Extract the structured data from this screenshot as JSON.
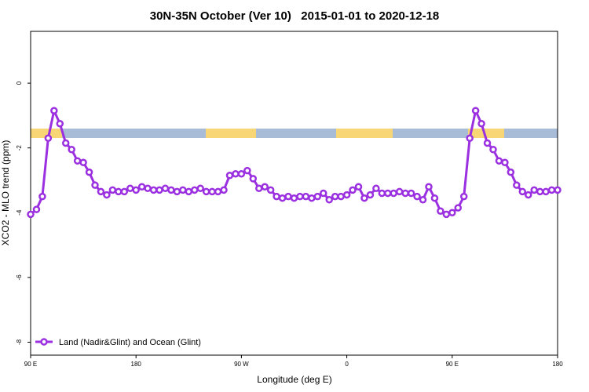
{
  "chart_data": {
    "type": "line",
    "title": "30N-35N October (Ver 10)   2015-01-01 to 2020-12-18",
    "x_label": "Longitude (deg E)",
    "y_label": "XCO2 - MLO trend (ppm)",
    "x": [
      90,
      95,
      100,
      105,
      110,
      115,
      120,
      125,
      130,
      135,
      140,
      145,
      150,
      155,
      160,
      165,
      170,
      175,
      180,
      185,
      190,
      195,
      200,
      205,
      210,
      215,
      220,
      225,
      230,
      235,
      240,
      245,
      250,
      255,
      260,
      265,
      270,
      275,
      280,
      285,
      290,
      295,
      300,
      305,
      310,
      315,
      320,
      325,
      330,
      335,
      340,
      345,
      350,
      355,
      360,
      365,
      370,
      375,
      380,
      385,
      390,
      395,
      400,
      405,
      410,
      415,
      420,
      425,
      430,
      435,
      440,
      445,
      450,
      455,
      460,
      465,
      470,
      475,
      480,
      485,
      490,
      495,
      500,
      505,
      510,
      515,
      520,
      525,
      530,
      535,
      540
    ],
    "series": [
      {
        "name": "Land (Nadir&Glint) and Ocean (Glint)",
        "color": "#9b30e0",
        "values": [
          -4.05,
          -3.9,
          -3.5,
          -1.7,
          -0.85,
          -1.25,
          -1.85,
          -2.05,
          -2.4,
          -2.45,
          -2.75,
          -3.15,
          -3.35,
          -3.45,
          -3.3,
          -3.35,
          -3.35,
          -3.25,
          -3.3,
          -3.2,
          -3.25,
          -3.3,
          -3.3,
          -3.25,
          -3.3,
          -3.35,
          -3.3,
          -3.35,
          -3.3,
          -3.25,
          -3.35,
          -3.35,
          -3.35,
          -3.3,
          -2.85,
          -2.8,
          -2.8,
          -2.7,
          -2.95,
          -3.25,
          -3.2,
          -3.3,
          -3.5,
          -3.55,
          -3.5,
          -3.55,
          -3.5,
          -3.5,
          -3.55,
          -3.5,
          -3.4,
          -3.6,
          -3.5,
          -3.5,
          -3.45,
          -3.3,
          -3.2,
          -3.55,
          -3.45,
          -3.25,
          -3.4,
          -3.4,
          -3.4,
          -3.35,
          -3.4,
          -3.4,
          -3.5,
          -3.6,
          -3.2,
          -3.55,
          -3.95,
          -4.05,
          -4.0,
          -3.85,
          -3.5,
          -1.7,
          -0.85,
          -1.25,
          -1.85,
          -2.05,
          -2.4,
          -2.45,
          -2.75,
          -3.15,
          -3.35,
          -3.45,
          -3.3,
          -3.35,
          -3.35,
          -3.3,
          -3.3
        ]
      }
    ],
    "xlim": [
      90,
      540
    ],
    "xticks": [
      {
        "value": 90,
        "label": "90 E"
      },
      180,
      {
        "value": 270,
        "label": "90 W"
      },
      {
        "value": 360,
        "label": "0"
      },
      {
        "value": 450,
        "label": "90 E"
      },
      180
    ],
    "ylim": [
      -8.4,
      1.6
    ],
    "yticks": [
      0,
      -2,
      -4,
      -6,
      -8
    ],
    "legend": "bottom-left"
  }
}
